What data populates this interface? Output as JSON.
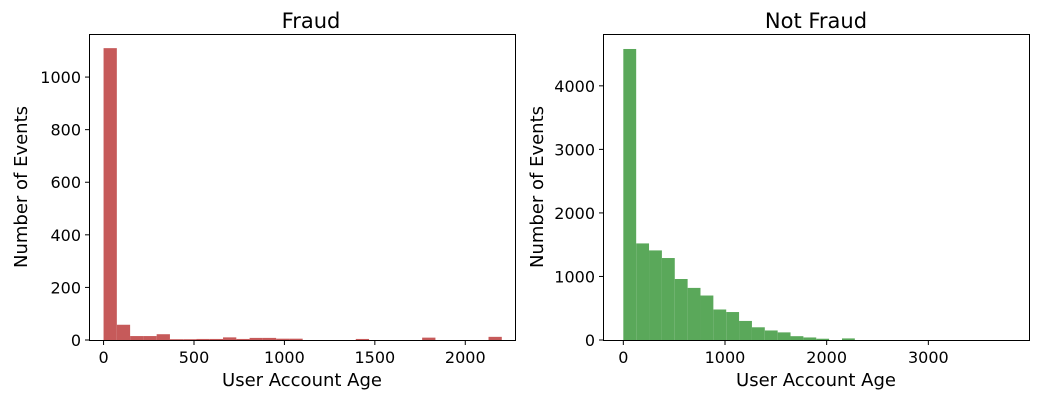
{
  "chart_data": [
    {
      "type": "histogram",
      "title": "Fraud",
      "xlabel": "User Account Age",
      "ylabel": "Number of Events",
      "color": "#c65a5a",
      "grid": false,
      "xlim": [
        -75,
        2275
      ],
      "ylim": [
        0,
        1160
      ],
      "x_ticks": [
        0,
        500,
        1000,
        1500,
        2000
      ],
      "y_ticks": [
        0,
        200,
        400,
        600,
        800,
        1000
      ],
      "bins": {
        "start": 0,
        "width": 73.4,
        "counts": [
          1110,
          58,
          15,
          15,
          22,
          3,
          3,
          4,
          4,
          10,
          4,
          8,
          8,
          5,
          5,
          0,
          0,
          0,
          0,
          4,
          0,
          0,
          0,
          0,
          9,
          0,
          0,
          0,
          0,
          12
        ]
      }
    },
    {
      "type": "histogram",
      "title": "Not Fraud",
      "xlabel": "User Account Age",
      "ylabel": "Number of Events",
      "color": "#5aa85a",
      "grid": false,
      "xlim": [
        -190,
        3990
      ],
      "ylim": [
        0,
        4800
      ],
      "x_ticks": [
        0,
        1000,
        2000,
        3000
      ],
      "y_ticks": [
        0,
        1000,
        2000,
        3000,
        4000
      ],
      "bins": {
        "start": 0,
        "width": 126.5,
        "counts": [
          4580,
          1520,
          1410,
          1290,
          960,
          820,
          700,
          480,
          440,
          300,
          200,
          150,
          120,
          60,
          40,
          20,
          0,
          25,
          0,
          0,
          0,
          0,
          0,
          0,
          0,
          0,
          0,
          0,
          0,
          0
        ]
      }
    }
  ]
}
